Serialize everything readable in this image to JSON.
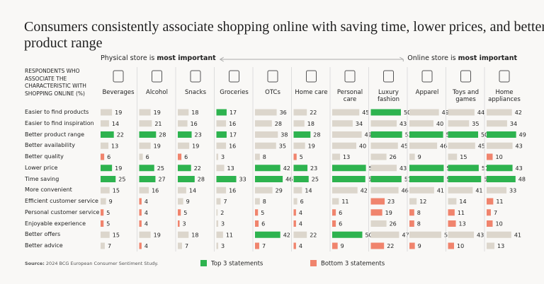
{
  "chart_data": {
    "type": "bar",
    "title": "Consumers consistently associate shopping online with saving time, lower prices, and better product range",
    "header": "RESPONDENTS WHO ASSOCIATE THE CHARACTERISTIC WITH SHOPPING ONLINE (%)",
    "left_arrow": {
      "text": "Physical store is",
      "bold": "most important"
    },
    "right_arrow": {
      "text": "Online store is",
      "bold": "most important"
    },
    "rows": [
      "Easier to find products",
      "Easier to find inspiration",
      "Better product range",
      "Better availability",
      "Better quality",
      "Lower price",
      "Time saving",
      "More convenient",
      "Efficient customer service",
      "Personal customer service",
      "Enjoyable experience",
      "Better offers",
      "Better advice"
    ],
    "columns": [
      {
        "name": "Beverages",
        "values": [
          19,
          14,
          22,
          13,
          6,
          19,
          25,
          15,
          9,
          5,
          5,
          15,
          7
        ],
        "colors": [
          "#dcd6cc",
          "#dcd6cc",
          "#2eb34f",
          "#dcd6cc",
          "#f0846d",
          "#2eb34f",
          "#2eb34f",
          "#dcd6cc",
          "#dcd6cc",
          "#f0846d",
          "#f0846d",
          "#dcd6cc",
          "#dcd6cc"
        ]
      },
      {
        "name": "Alcohol",
        "values": [
          19,
          21,
          28,
          19,
          6,
          25,
          27,
          16,
          4,
          4,
          4,
          19,
          4
        ],
        "colors": [
          "#dcd6cc",
          "#dcd6cc",
          "#2eb34f",
          "#dcd6cc",
          "#dcd6cc",
          "#2eb34f",
          "#2eb34f",
          "#dcd6cc",
          "#f0846d",
          "#f0846d",
          "#f0846d",
          "#dcd6cc",
          "#f0846d"
        ]
      },
      {
        "name": "Snacks",
        "values": [
          18,
          16,
          23,
          19,
          6,
          22,
          28,
          14,
          9,
          5,
          3,
          18,
          7
        ],
        "colors": [
          "#dcd6cc",
          "#dcd6cc",
          "#2eb34f",
          "#dcd6cc",
          "#f0846d",
          "#2eb34f",
          "#2eb34f",
          "#dcd6cc",
          "#dcd6cc",
          "#f0846d",
          "#f0846d",
          "#dcd6cc",
          "#dcd6cc"
        ]
      },
      {
        "name": "Groceries",
        "values": [
          17,
          16,
          17,
          16,
          3,
          13,
          33,
          16,
          7,
          2,
          3,
          11,
          3
        ],
        "colors": [
          "#2eb34f",
          "#dcd6cc",
          "#2eb34f",
          "#dcd6cc",
          "#dcd6cc",
          "#dcd6cc",
          "#2eb34f",
          "#dcd6cc",
          "#dcd6cc",
          "#dcd6cc",
          "#dcd6cc",
          "#dcd6cc",
          "#dcd6cc"
        ]
      },
      {
        "name": "OTCs",
        "values": [
          36,
          28,
          38,
          35,
          8,
          42,
          46,
          29,
          8,
          5,
          6,
          42,
          7
        ],
        "colors": [
          "#dcd6cc",
          "#dcd6cc",
          "#dcd6cc",
          "#dcd6cc",
          "#dcd6cc",
          "#2eb34f",
          "#2eb34f",
          "#dcd6cc",
          "#dcd6cc",
          "#f0846d",
          "#f0846d",
          "#2eb34f",
          "#f0846d"
        ]
      },
      {
        "name": "Home care",
        "values": [
          22,
          18,
          28,
          19,
          5,
          23,
          25,
          14,
          6,
          4,
          4,
          22,
          4
        ],
        "colors": [
          "#dcd6cc",
          "#dcd6cc",
          "#2eb34f",
          "#dcd6cc",
          "#f0846d",
          "#2eb34f",
          "#2eb34f",
          "#dcd6cc",
          "#dcd6cc",
          "#f0846d",
          "#f0846d",
          "#dcd6cc",
          "#f0846d"
        ]
      },
      {
        "name": "Personal care",
        "values": [
          45,
          34,
          49,
          40,
          13,
          56,
          55,
          42,
          11,
          6,
          6,
          50,
          9
        ],
        "colors": [
          "#dcd6cc",
          "#dcd6cc",
          "#dcd6cc",
          "#dcd6cc",
          "#dcd6cc",
          "#2eb34f",
          "#2eb34f",
          "#dcd6cc",
          "#dcd6cc",
          "#f0846d",
          "#f0846d",
          "#2eb34f",
          "#f0846d"
        ]
      },
      {
        "name": "Luxury fashion",
        "values": [
          50,
          43,
          52,
          45,
          26,
          43,
          51,
          46,
          23,
          19,
          26,
          47,
          22
        ],
        "colors": [
          "#2eb34f",
          "#dcd6cc",
          "#2eb34f",
          "#dcd6cc",
          "#dcd6cc",
          "#dcd6cc",
          "#2eb34f",
          "#dcd6cc",
          "#f0846d",
          "#f0846d",
          "#dcd6cc",
          "#dcd6cc",
          "#f0846d"
        ]
      },
      {
        "name": "Apparel",
        "values": [
          49,
          40,
          56,
          46,
          9,
          57,
          57,
          41,
          12,
          8,
          8,
          53,
          9
        ],
        "colors": [
          "#dcd6cc",
          "#dcd6cc",
          "#2eb34f",
          "#dcd6cc",
          "#dcd6cc",
          "#2eb34f",
          "#2eb34f",
          "#dcd6cc",
          "#dcd6cc",
          "#f0846d",
          "#f0846d",
          "#dcd6cc",
          "#f0846d"
        ]
      },
      {
        "name": "Toys and games",
        "values": [
          44,
          35,
          50,
          45,
          15,
          51,
          55,
          41,
          14,
          11,
          13,
          43,
          10
        ],
        "colors": [
          "#dcd6cc",
          "#dcd6cc",
          "#2eb34f",
          "#dcd6cc",
          "#dcd6cc",
          "#2eb34f",
          "#2eb34f",
          "#dcd6cc",
          "#dcd6cc",
          "#f0846d",
          "#f0846d",
          "#dcd6cc",
          "#f0846d"
        ]
      },
      {
        "name": "Home appliances",
        "values": [
          42,
          34,
          49,
          43,
          10,
          43,
          48,
          33,
          11,
          7,
          10,
          41,
          13
        ],
        "colors": [
          "#dcd6cc",
          "#dcd6cc",
          "#2eb34f",
          "#dcd6cc",
          "#f0846d",
          "#2eb34f",
          "#2eb34f",
          "#dcd6cc",
          "#f0846d",
          "#f0846d",
          "#f0846d",
          "#dcd6cc",
          "#dcd6cc"
        ]
      }
    ],
    "legend": [
      {
        "label": "Top 3 statements",
        "color": "#2eb34f"
      },
      {
        "label": "Bottom 3 statements",
        "color": "#f0846d"
      }
    ],
    "source": {
      "label": "Source:",
      "text": "2024 BCG European Consumer Sentiment Study."
    }
  }
}
